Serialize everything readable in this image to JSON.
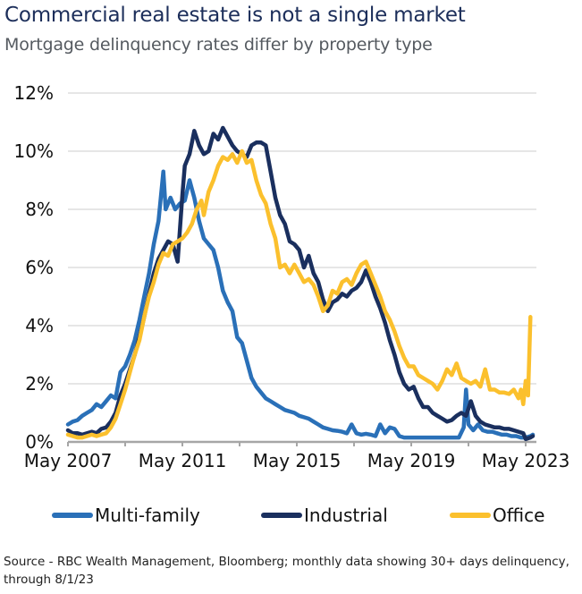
{
  "chart_data": {
    "type": "line",
    "title": "Commercial real estate is not a single market",
    "subtitle": "Mortgage delinquency rates differ by property type",
    "xlabel": "",
    "ylabel": "",
    "x_unit": "months since May 2007",
    "xlim": [
      0,
      195
    ],
    "ylim": [
      0,
      12
    ],
    "yticks": [
      0,
      2,
      4,
      6,
      8,
      10,
      12
    ],
    "ytick_labels": [
      "0%",
      "2%",
      "4%",
      "6%",
      "8%",
      "10%",
      "12%"
    ],
    "xticks": [
      0,
      24,
      48,
      72,
      96,
      120,
      144,
      168,
      192
    ],
    "xtick_labels": [
      "May 2007",
      "",
      "May 2011",
      "",
      "May 2015",
      "",
      "May 2019",
      "",
      "May 2023"
    ],
    "grid": true,
    "legend_position": "bottom",
    "series": [
      {
        "name": "Multi-family",
        "color": "#2a70b8",
        "points": [
          [
            0,
            0.6
          ],
          [
            2,
            0.7
          ],
          [
            4,
            0.75
          ],
          [
            6,
            0.9
          ],
          [
            8,
            1.0
          ],
          [
            10,
            1.1
          ],
          [
            12,
            1.3
          ],
          [
            14,
            1.2
          ],
          [
            16,
            1.4
          ],
          [
            18,
            1.6
          ],
          [
            20,
            1.5
          ],
          [
            22,
            2.4
          ],
          [
            24,
            2.6
          ],
          [
            26,
            3.0
          ],
          [
            28,
            3.5
          ],
          [
            30,
            4.2
          ],
          [
            32,
            5.0
          ],
          [
            34,
            5.8
          ],
          [
            36,
            6.8
          ],
          [
            38,
            7.6
          ],
          [
            40,
            9.3
          ],
          [
            41,
            8.0
          ],
          [
            43,
            8.4
          ],
          [
            45,
            8.0
          ],
          [
            47,
            8.2
          ],
          [
            49,
            8.3
          ],
          [
            51,
            9.0
          ],
          [
            53,
            8.4
          ],
          [
            55,
            7.6
          ],
          [
            57,
            7.0
          ],
          [
            59,
            6.8
          ],
          [
            61,
            6.6
          ],
          [
            63,
            6.0
          ],
          [
            65,
            5.2
          ],
          [
            67,
            4.8
          ],
          [
            69,
            4.5
          ],
          [
            71,
            3.6
          ],
          [
            73,
            3.4
          ],
          [
            75,
            2.8
          ],
          [
            77,
            2.2
          ],
          [
            79,
            1.9
          ],
          [
            81,
            1.7
          ],
          [
            83,
            1.5
          ],
          [
            85,
            1.4
          ],
          [
            87,
            1.3
          ],
          [
            89,
            1.2
          ],
          [
            91,
            1.1
          ],
          [
            93,
            1.05
          ],
          [
            95,
            1.0
          ],
          [
            97,
            0.9
          ],
          [
            99,
            0.85
          ],
          [
            101,
            0.8
          ],
          [
            103,
            0.7
          ],
          [
            105,
            0.6
          ],
          [
            107,
            0.5
          ],
          [
            109,
            0.45
          ],
          [
            111,
            0.4
          ],
          [
            113,
            0.38
          ],
          [
            115,
            0.35
          ],
          [
            117,
            0.3
          ],
          [
            119,
            0.6
          ],
          [
            121,
            0.3
          ],
          [
            123,
            0.25
          ],
          [
            125,
            0.28
          ],
          [
            127,
            0.25
          ],
          [
            129,
            0.2
          ],
          [
            131,
            0.6
          ],
          [
            133,
            0.3
          ],
          [
            135,
            0.5
          ],
          [
            137,
            0.45
          ],
          [
            139,
            0.2
          ],
          [
            141,
            0.15
          ],
          [
            145,
            0.15
          ],
          [
            150,
            0.15
          ],
          [
            155,
            0.15
          ],
          [
            160,
            0.15
          ],
          [
            164,
            0.15
          ],
          [
            166,
            0.5
          ],
          [
            167,
            1.8
          ],
          [
            168,
            0.6
          ],
          [
            170,
            0.4
          ],
          [
            172,
            0.6
          ],
          [
            174,
            0.4
          ],
          [
            176,
            0.35
          ],
          [
            178,
            0.35
          ],
          [
            180,
            0.3
          ],
          [
            182,
            0.25
          ],
          [
            184,
            0.25
          ],
          [
            186,
            0.2
          ],
          [
            188,
            0.2
          ],
          [
            190,
            0.15
          ],
          [
            192,
            0.15
          ],
          [
            194,
            0.2
          ],
          [
            195,
            0.25
          ]
        ]
      },
      {
        "name": "Industrial",
        "color": "#1a2f5e",
        "points": [
          [
            0,
            0.4
          ],
          [
            2,
            0.3
          ],
          [
            4,
            0.3
          ],
          [
            6,
            0.25
          ],
          [
            8,
            0.3
          ],
          [
            10,
            0.35
          ],
          [
            12,
            0.3
          ],
          [
            14,
            0.45
          ],
          [
            16,
            0.5
          ],
          [
            18,
            0.7
          ],
          [
            20,
            1.0
          ],
          [
            22,
            1.6
          ],
          [
            24,
            2.0
          ],
          [
            26,
            2.5
          ],
          [
            28,
            3.0
          ],
          [
            30,
            3.6
          ],
          [
            32,
            4.3
          ],
          [
            34,
            5.1
          ],
          [
            36,
            5.8
          ],
          [
            38,
            6.3
          ],
          [
            40,
            6.6
          ],
          [
            42,
            6.9
          ],
          [
            44,
            6.8
          ],
          [
            46,
            6.2
          ],
          [
            48,
            8.5
          ],
          [
            49,
            9.5
          ],
          [
            51,
            9.9
          ],
          [
            52,
            10.3
          ],
          [
            53,
            10.7
          ],
          [
            55,
            10.2
          ],
          [
            57,
            9.9
          ],
          [
            59,
            10.0
          ],
          [
            61,
            10.6
          ],
          [
            63,
            10.4
          ],
          [
            65,
            10.8
          ],
          [
            67,
            10.5
          ],
          [
            69,
            10.2
          ],
          [
            71,
            10.0
          ],
          [
            73,
            9.9
          ],
          [
            75,
            9.8
          ],
          [
            77,
            10.2
          ],
          [
            79,
            10.3
          ],
          [
            81,
            10.3
          ],
          [
            83,
            10.2
          ],
          [
            85,
            9.3
          ],
          [
            87,
            8.4
          ],
          [
            89,
            7.8
          ],
          [
            91,
            7.5
          ],
          [
            93,
            6.9
          ],
          [
            95,
            6.8
          ],
          [
            97,
            6.6
          ],
          [
            99,
            6.0
          ],
          [
            101,
            6.4
          ],
          [
            103,
            5.8
          ],
          [
            105,
            5.5
          ],
          [
            107,
            4.9
          ],
          [
            109,
            4.5
          ],
          [
            111,
            4.8
          ],
          [
            113,
            4.9
          ],
          [
            115,
            5.1
          ],
          [
            117,
            5.0
          ],
          [
            119,
            5.2
          ],
          [
            121,
            5.3
          ],
          [
            123,
            5.5
          ],
          [
            125,
            5.9
          ],
          [
            127,
            5.5
          ],
          [
            129,
            5.0
          ],
          [
            131,
            4.6
          ],
          [
            133,
            4.1
          ],
          [
            135,
            3.5
          ],
          [
            137,
            3.0
          ],
          [
            139,
            2.4
          ],
          [
            141,
            2.0
          ],
          [
            143,
            1.8
          ],
          [
            145,
            1.9
          ],
          [
            147,
            1.5
          ],
          [
            149,
            1.2
          ],
          [
            151,
            1.2
          ],
          [
            153,
            1.0
          ],
          [
            155,
            0.9
          ],
          [
            157,
            0.8
          ],
          [
            159,
            0.7
          ],
          [
            161,
            0.75
          ],
          [
            163,
            0.9
          ],
          [
            165,
            1.0
          ],
          [
            167,
            0.9
          ],
          [
            169,
            1.4
          ],
          [
            171,
            0.9
          ],
          [
            173,
            0.7
          ],
          [
            175,
            0.6
          ],
          [
            177,
            0.55
          ],
          [
            179,
            0.5
          ],
          [
            181,
            0.5
          ],
          [
            183,
            0.45
          ],
          [
            185,
            0.45
          ],
          [
            187,
            0.4
          ],
          [
            189,
            0.35
          ],
          [
            191,
            0.3
          ],
          [
            192,
            0.1
          ],
          [
            194,
            0.15
          ],
          [
            195,
            0.2
          ]
        ]
      },
      {
        "name": "Office",
        "color": "#fbc02d",
        "points": [
          [
            0,
            0.25
          ],
          [
            2,
            0.2
          ],
          [
            4,
            0.15
          ],
          [
            6,
            0.15
          ],
          [
            8,
            0.2
          ],
          [
            10,
            0.25
          ],
          [
            12,
            0.2
          ],
          [
            14,
            0.25
          ],
          [
            16,
            0.3
          ],
          [
            18,
            0.5
          ],
          [
            20,
            0.8
          ],
          [
            22,
            1.3
          ],
          [
            24,
            1.8
          ],
          [
            26,
            2.4
          ],
          [
            28,
            3.0
          ],
          [
            30,
            3.5
          ],
          [
            32,
            4.3
          ],
          [
            34,
            5.0
          ],
          [
            36,
            5.5
          ],
          [
            38,
            6.1
          ],
          [
            40,
            6.5
          ],
          [
            42,
            6.4
          ],
          [
            44,
            6.8
          ],
          [
            46,
            6.9
          ],
          [
            48,
            7.0
          ],
          [
            50,
            7.2
          ],
          [
            52,
            7.5
          ],
          [
            54,
            8.0
          ],
          [
            56,
            8.3
          ],
          [
            57,
            7.8
          ],
          [
            59,
            8.6
          ],
          [
            61,
            9.0
          ],
          [
            63,
            9.5
          ],
          [
            65,
            9.8
          ],
          [
            67,
            9.7
          ],
          [
            69,
            9.9
          ],
          [
            71,
            9.6
          ],
          [
            73,
            10.0
          ],
          [
            75,
            9.6
          ],
          [
            77,
            9.7
          ],
          [
            79,
            9.0
          ],
          [
            81,
            8.5
          ],
          [
            83,
            8.2
          ],
          [
            85,
            7.5
          ],
          [
            87,
            7.0
          ],
          [
            89,
            6.0
          ],
          [
            91,
            6.1
          ],
          [
            93,
            5.8
          ],
          [
            95,
            6.1
          ],
          [
            97,
            5.8
          ],
          [
            99,
            5.5
          ],
          [
            101,
            5.6
          ],
          [
            103,
            5.4
          ],
          [
            105,
            5.0
          ],
          [
            107,
            4.5
          ],
          [
            109,
            4.7
          ],
          [
            111,
            5.2
          ],
          [
            113,
            5.1
          ],
          [
            115,
            5.5
          ],
          [
            117,
            5.6
          ],
          [
            119,
            5.4
          ],
          [
            121,
            5.8
          ],
          [
            123,
            6.1
          ],
          [
            125,
            6.2
          ],
          [
            127,
            5.8
          ],
          [
            129,
            5.4
          ],
          [
            131,
            5.0
          ],
          [
            133,
            4.5
          ],
          [
            135,
            4.2
          ],
          [
            137,
            3.8
          ],
          [
            139,
            3.3
          ],
          [
            141,
            2.9
          ],
          [
            143,
            2.6
          ],
          [
            145,
            2.6
          ],
          [
            147,
            2.3
          ],
          [
            149,
            2.2
          ],
          [
            151,
            2.1
          ],
          [
            153,
            2.0
          ],
          [
            155,
            1.8
          ],
          [
            157,
            2.1
          ],
          [
            159,
            2.5
          ],
          [
            161,
            2.3
          ],
          [
            163,
            2.7
          ],
          [
            165,
            2.2
          ],
          [
            167,
            2.1
          ],
          [
            169,
            2.0
          ],
          [
            171,
            2.1
          ],
          [
            173,
            1.9
          ],
          [
            175,
            2.5
          ],
          [
            177,
            1.8
          ],
          [
            179,
            1.8
          ],
          [
            181,
            1.7
          ],
          [
            183,
            1.7
          ],
          [
            185,
            1.65
          ],
          [
            187,
            1.8
          ],
          [
            189,
            1.5
          ],
          [
            190,
            1.8
          ],
          [
            191,
            1.3
          ],
          [
            192,
            2.1
          ],
          [
            193,
            1.6
          ],
          [
            194,
            4.3
          ]
        ]
      }
    ],
    "source": "Source - RBC Wealth Management, Bloomberg; monthly data showing 30+ days delinquency, through 8/1/23"
  },
  "legend": [
    {
      "label": "Multi-family",
      "color": "#2a70b8"
    },
    {
      "label": "Industrial",
      "color": "#1a2f5e"
    },
    {
      "label": "Office",
      "color": "#fbc02d"
    }
  ]
}
